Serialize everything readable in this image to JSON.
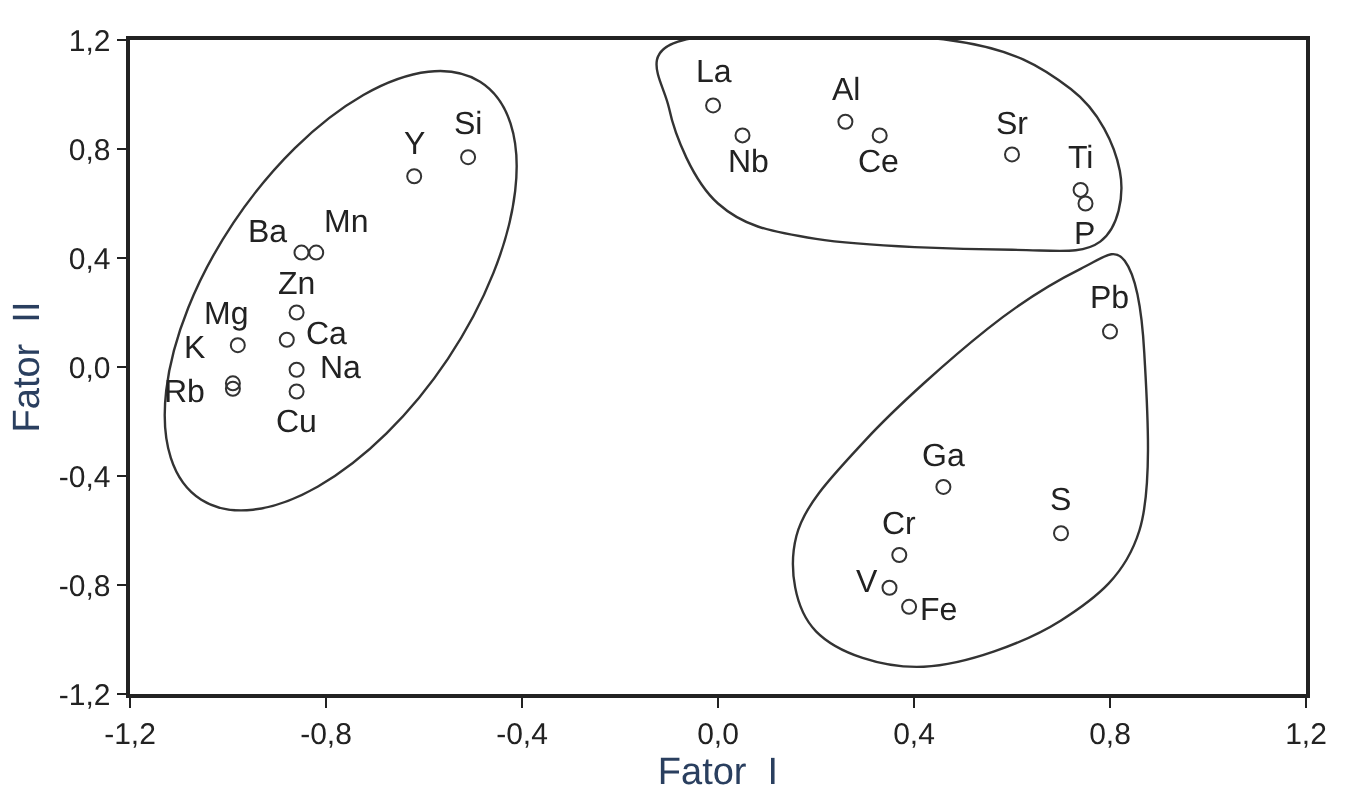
{
  "chart_data": {
    "type": "scatter",
    "xlabel": "Fator  I",
    "ylabel": "Fator  II",
    "x": [
      -0.01,
      0.05,
      0.26,
      0.33,
      0.6,
      0.74,
      0.75,
      0.8,
      0.46,
      0.7,
      0.37,
      0.35,
      0.39,
      -0.62,
      -0.51,
      -0.85,
      -0.82,
      -0.86,
      -0.88,
      -0.98,
      -0.86,
      -0.86,
      -0.99,
      -0.99
    ],
    "values": [
      0.96,
      0.85,
      0.9,
      0.85,
      0.78,
      0.65,
      0.6,
      0.13,
      -0.44,
      -0.61,
      -0.69,
      -0.81,
      -0.88,
      0.7,
      0.77,
      0.42,
      0.42,
      0.2,
      0.1,
      0.08,
      -0.01,
      -0.09,
      -0.06,
      -0.08
    ],
    "color": "#333333",
    "marker": "circle",
    "grid": false,
    "legend": false,
    "xlim": [
      -1.2,
      1.2
    ],
    "ylim": [
      -1.2,
      1.2
    ],
    "xticks": [
      {
        "value": -1.2,
        "label": "-1,2"
      },
      {
        "value": -0.8,
        "label": "-0,8"
      },
      {
        "value": -0.4,
        "label": "-0,4"
      },
      {
        "value": 0,
        "label": "0,0"
      },
      {
        "value": 0.4,
        "label": "0,4"
      },
      {
        "value": 0.8,
        "label": "0,8"
      },
      {
        "value": 1.2,
        "label": "1,2"
      }
    ],
    "yticks": [
      {
        "value": -1.2,
        "label": "-1,2"
      },
      {
        "value": -0.8,
        "label": "-0,8"
      },
      {
        "value": -0.4,
        "label": "-0,4"
      },
      {
        "value": 0,
        "label": "0,0"
      },
      {
        "value": 0.4,
        "label": "0,4"
      },
      {
        "value": 0.8,
        "label": "0,8"
      },
      {
        "value": 1.2,
        "label": "1,2"
      }
    ],
    "annotations": [
      {
        "text": "La",
        "x": -0.01,
        "y": 0.96
      },
      {
        "text": "Nb",
        "x": 0.05,
        "y": 0.85
      },
      {
        "text": "Al",
        "x": 0.26,
        "y": 0.9
      },
      {
        "text": "Ce",
        "x": 0.33,
        "y": 0.85
      },
      {
        "text": "Sr",
        "x": 0.6,
        "y": 0.78
      },
      {
        "text": "Ti",
        "x": 0.74,
        "y": 0.65
      },
      {
        "text": "P",
        "x": 0.75,
        "y": 0.6
      },
      {
        "text": "Pb",
        "x": 0.8,
        "y": 0.13
      },
      {
        "text": "Ga",
        "x": 0.46,
        "y": -0.44
      },
      {
        "text": "S",
        "x": 0.7,
        "y": -0.61
      },
      {
        "text": "Cr",
        "x": 0.37,
        "y": -0.69
      },
      {
        "text": "V",
        "x": 0.35,
        "y": -0.81
      },
      {
        "text": "Fe",
        "x": 0.39,
        "y": -0.88
      },
      {
        "text": "Y",
        "x": -0.62,
        "y": 0.7
      },
      {
        "text": "Si",
        "x": -0.51,
        "y": 0.77
      },
      {
        "text": "Ba",
        "x": -0.85,
        "y": 0.42
      },
      {
        "text": "Mn",
        "x": -0.82,
        "y": 0.42
      },
      {
        "text": "Zn",
        "x": -0.86,
        "y": 0.2
      },
      {
        "text": "Ca",
        "x": -0.88,
        "y": 0.1
      },
      {
        "text": "Mg",
        "x": -0.98,
        "y": 0.08
      },
      {
        "text": "Na",
        "x": -0.86,
        "y": -0.01
      },
      {
        "text": "Cu",
        "x": -0.86,
        "y": -0.09
      },
      {
        "text": "K",
        "x": -0.99,
        "y": -0.06
      },
      {
        "text": "Rb",
        "x": -0.99,
        "y": -0.08
      }
    ]
  }
}
